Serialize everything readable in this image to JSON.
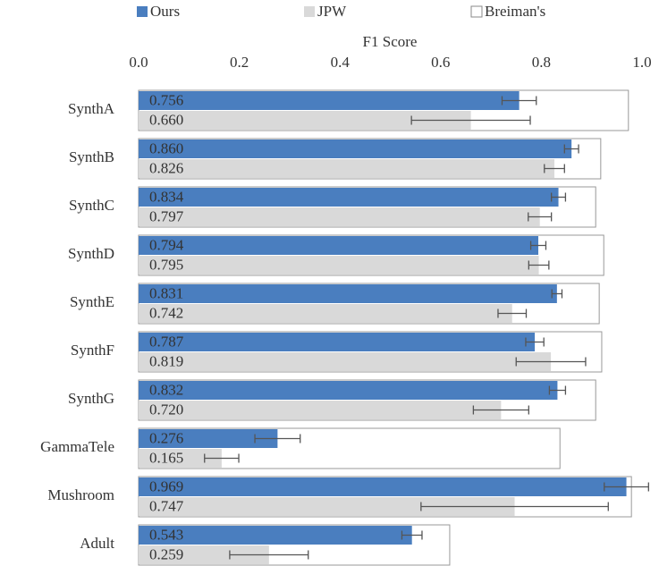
{
  "chart_data": {
    "type": "bar",
    "orientation": "horizontal",
    "x_label": "F1 Score",
    "categories": [
      "SynthA",
      "SynthB",
      "SynthC",
      "SynthD",
      "SynthE",
      "SynthF",
      "SynthG",
      "GammaTele",
      "Mushroom",
      "Adult"
    ],
    "series": [
      {
        "name": "Ours",
        "color": "#4a7ebf",
        "values": [
          0.756,
          0.86,
          0.834,
          0.794,
          0.831,
          0.787,
          0.832,
          0.276,
          0.969,
          0.543
        ],
        "value_labels": [
          "0.756",
          "0.860",
          "0.834",
          "0.794",
          "0.831",
          "0.787",
          "0.832",
          "0.276",
          "0.969",
          "0.543"
        ],
        "errors": [
          0.034,
          0.014,
          0.014,
          0.015,
          0.01,
          0.018,
          0.016,
          0.045,
          0.044,
          0.02
        ]
      },
      {
        "name": "JPW",
        "color": "#d9d9d9",
        "values": [
          0.66,
          0.826,
          0.797,
          0.795,
          0.742,
          0.819,
          0.72,
          0.165,
          0.747,
          0.259
        ],
        "value_labels": [
          "0.660",
          "0.826",
          "0.797",
          "0.795",
          "0.742",
          "0.819",
          "0.720",
          "0.165",
          "0.747",
          "0.259"
        ],
        "errors": [
          0.118,
          0.02,
          0.023,
          0.02,
          0.028,
          0.069,
          0.055,
          0.034,
          0.186,
          0.078
        ]
      },
      {
        "name": "Breiman's",
        "color": "#ffffff",
        "values": [
          0.973,
          0.918,
          0.908,
          0.924,
          0.915,
          0.92,
          0.908,
          0.837,
          0.979,
          0.618
        ]
      }
    ],
    "xlim": [
      0,
      1
    ],
    "xticks": [
      {
        "value": 0,
        "label": "0.0"
      },
      0.2,
      0.4,
      0.6,
      0.8,
      {
        "value": 1,
        "label": "1.0"
      }
    ],
    "legend": "top"
  }
}
